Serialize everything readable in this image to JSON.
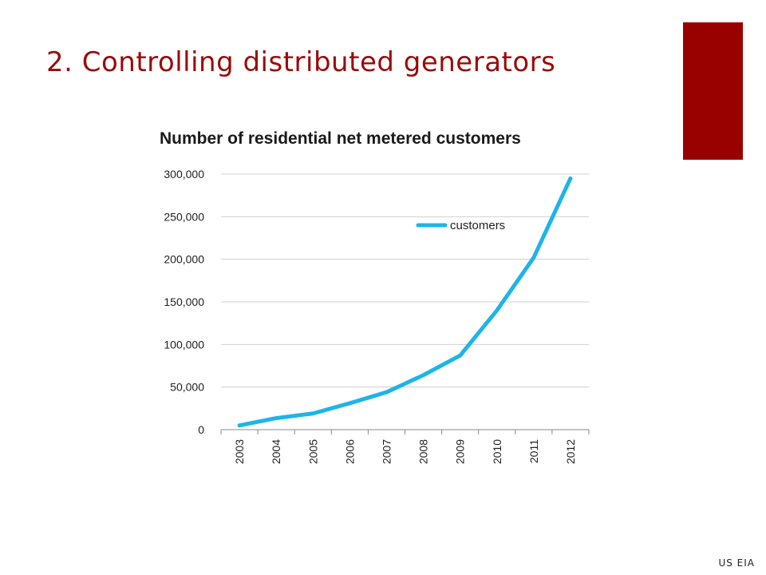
{
  "slide": {
    "title": "2. Controlling distributed generators",
    "source": "US EIA",
    "accent_color": "#990000"
  },
  "chart_data": {
    "type": "line",
    "title": "Number of residential net metered customers",
    "xlabel": "",
    "ylabel": "",
    "categories": [
      "2003",
      "2004",
      "2005",
      "2006",
      "2007",
      "2008",
      "2009",
      "2010",
      "2011",
      "2012"
    ],
    "series": [
      {
        "name": "customers",
        "values": [
          5000,
          13500,
          19000,
          31000,
          44000,
          64000,
          87000,
          140000,
          202000,
          295000
        ],
        "color": "#1eb4e8"
      }
    ],
    "ylim": [
      0,
      300000
    ],
    "yticks": [
      0,
      50000,
      100000,
      150000,
      200000,
      250000,
      300000
    ],
    "ytick_labels": [
      "0",
      "50,000",
      "100,000",
      "150,000",
      "200,000",
      "250,000",
      "300,000"
    ],
    "grid": true,
    "legend_position": "top-center-inside"
  }
}
